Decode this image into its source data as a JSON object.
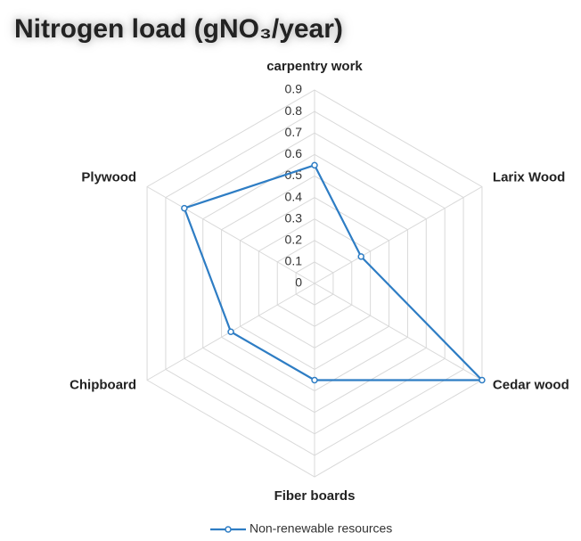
{
  "chart_data": {
    "type": "radar",
    "title": "Nitrogen load (gNO₃/year)",
    "categories": [
      "carpentry work",
      "Larix Wood",
      "Cedar wood",
      "Fiber boards",
      "Chipboard",
      "Plywood"
    ],
    "series": [
      {
        "name": "Non-renewable resources",
        "color": "#2e7dc4",
        "values": [
          0.55,
          0.25,
          0.9,
          0.45,
          0.45,
          0.7
        ]
      }
    ],
    "ylim": [
      0,
      0.9
    ],
    "yticks": [
      0,
      0.1,
      0.2,
      0.3,
      0.4,
      0.5,
      0.6,
      0.7,
      0.8,
      0.9
    ],
    "grid": true,
    "legend": "bottom"
  }
}
